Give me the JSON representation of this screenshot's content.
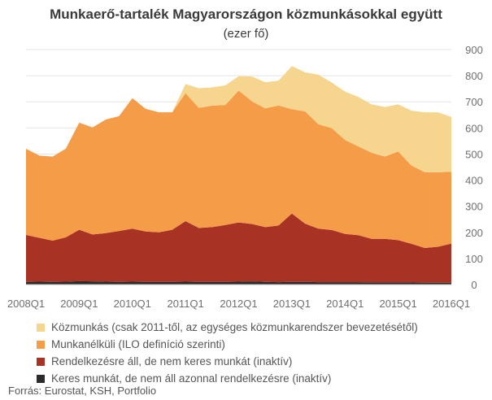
{
  "chart_data": {
    "type": "area",
    "stacked": true,
    "title": "Munkaerő-tartalék Magyarországon közmunkásokkal együtt",
    "subtitle": "(ezer fő)",
    "x": [
      "2008Q1",
      "2008Q2",
      "2008Q3",
      "2008Q4",
      "2009Q1",
      "2009Q2",
      "2009Q3",
      "2009Q4",
      "2010Q1",
      "2010Q2",
      "2010Q3",
      "2010Q4",
      "2011Q1",
      "2011Q2",
      "2011Q3",
      "2011Q4",
      "2012Q1",
      "2012Q2",
      "2012Q3",
      "2012Q4",
      "2013Q1",
      "2013Q2",
      "2013Q3",
      "2013Q4",
      "2014Q1",
      "2014Q2",
      "2014Q3",
      "2014Q4",
      "2015Q1",
      "2015Q2",
      "2015Q3",
      "2015Q4",
      "2016Q1"
    ],
    "x_tick_labels": [
      "2008Q1",
      "2009Q1",
      "2010Q1",
      "2011Q1",
      "2012Q1",
      "2013Q1",
      "2014Q1",
      "2015Q1",
      "2016Q1"
    ],
    "ylim": [
      0,
      900
    ],
    "y_ticks": [
      "0",
      "100",
      "200",
      "300",
      "400",
      "500",
      "600",
      "700",
      "800",
      "900"
    ],
    "y_axis_position": "right",
    "grid": true,
    "legend_position": "bottom",
    "series": [
      {
        "name": "Keres munkát, de nem áll azonnal rendelkezésre (inaktív)",
        "color": "#2b2b2b",
        "values": [
          10,
          11,
          10,
          11,
          13,
          12,
          11,
          10,
          11,
          10,
          10,
          10,
          11,
          10,
          10,
          10,
          11,
          12,
          10,
          9,
          10,
          10,
          9,
          9,
          9,
          9,
          8,
          8,
          8,
          8,
          7,
          7,
          7
        ]
      },
      {
        "name": "Rendelkezésre áll, de nem keres munkát (inaktív)",
        "color": "#a83223",
        "values": [
          180,
          168,
          158,
          170,
          197,
          180,
          186,
          195,
          203,
          193,
          190,
          200,
          232,
          207,
          210,
          218,
          227,
          220,
          210,
          217,
          262,
          223,
          205,
          200,
          185,
          180,
          167,
          167,
          162,
          148,
          133,
          138,
          150
        ]
      },
      {
        "name": "Munkanélküli (ILO definíció szerinti)",
        "color": "#f59c48",
        "values": [
          330,
          315,
          322,
          340,
          410,
          410,
          435,
          440,
          500,
          470,
          460,
          450,
          490,
          460,
          465,
          460,
          505,
          470,
          455,
          460,
          400,
          430,
          400,
          390,
          360,
          340,
          330,
          315,
          340,
          300,
          290,
          285,
          275
        ]
      },
      {
        "name": "Közmunkás (csak 2011-től, az egységes közmunkarendszer bevezetésétől)",
        "color": "#f6d58f",
        "values": [
          0,
          0,
          0,
          0,
          0,
          0,
          0,
          0,
          0,
          0,
          0,
          0,
          35,
          75,
          70,
          75,
          55,
          95,
          100,
          95,
          165,
          150,
          190,
          175,
          185,
          190,
          185,
          190,
          180,
          210,
          230,
          230,
          210
        ]
      }
    ],
    "legend_order": [
      3,
      2,
      1,
      0
    ]
  },
  "source": "Forrás: Eurostat, KSH, Portfolio"
}
